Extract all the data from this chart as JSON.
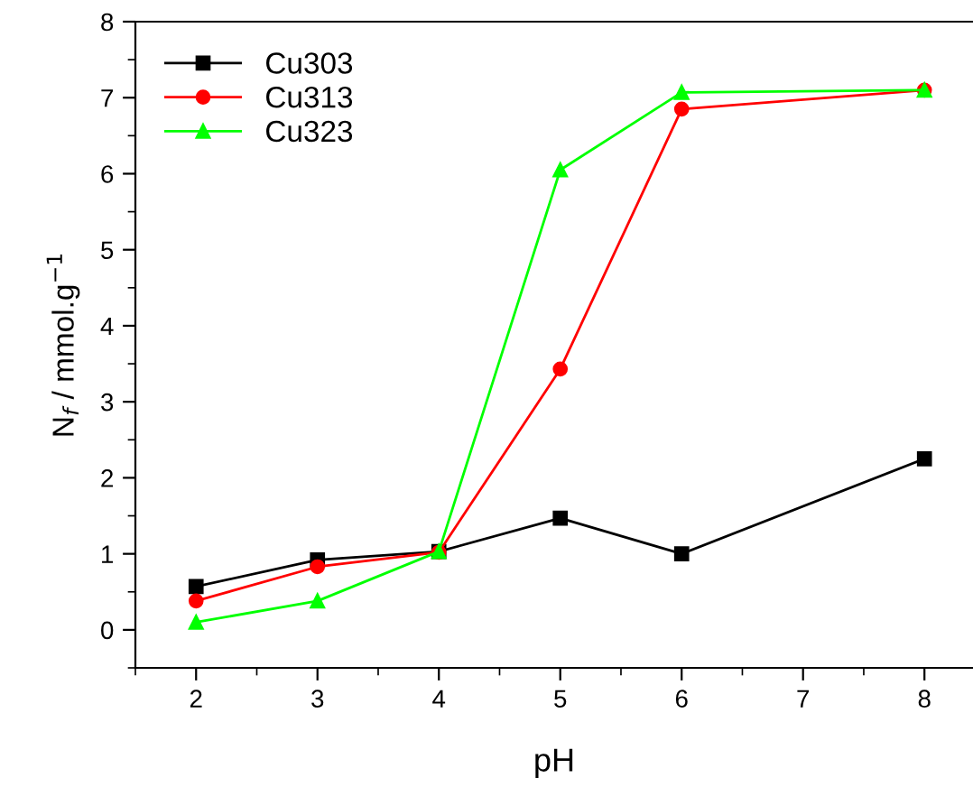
{
  "chart_data": {
    "type": "line",
    "xlabel": "pH",
    "ylabel": "N$_{f}$ / mmol.g$^{−1}$",
    "x": [
      2,
      3,
      4,
      5,
      6,
      8
    ],
    "series": [
      {
        "name": "Cu303",
        "color": "#000000",
        "marker": "square",
        "values": [
          0.57,
          0.92,
          1.03,
          1.47,
          1.0,
          2.25
        ]
      },
      {
        "name": "Cu313",
        "color": "#ff0000",
        "marker": "circle",
        "values": [
          0.38,
          0.83,
          1.02,
          3.43,
          6.85,
          7.1
        ]
      },
      {
        "name": "Cu323",
        "color": "#00ff00",
        "marker": "triangle",
        "values": [
          0.1,
          0.38,
          1.03,
          6.05,
          7.07,
          7.1
        ]
      }
    ],
    "xlim": [
      1.5,
      8.4
    ],
    "ylim": [
      -0.5,
      8
    ],
    "xticks": [
      2,
      3,
      4,
      5,
      6,
      7,
      8
    ],
    "yticks": [
      0,
      1,
      2,
      3,
      4,
      5,
      6,
      7,
      8
    ],
    "grid": false,
    "legend": "top left"
  }
}
